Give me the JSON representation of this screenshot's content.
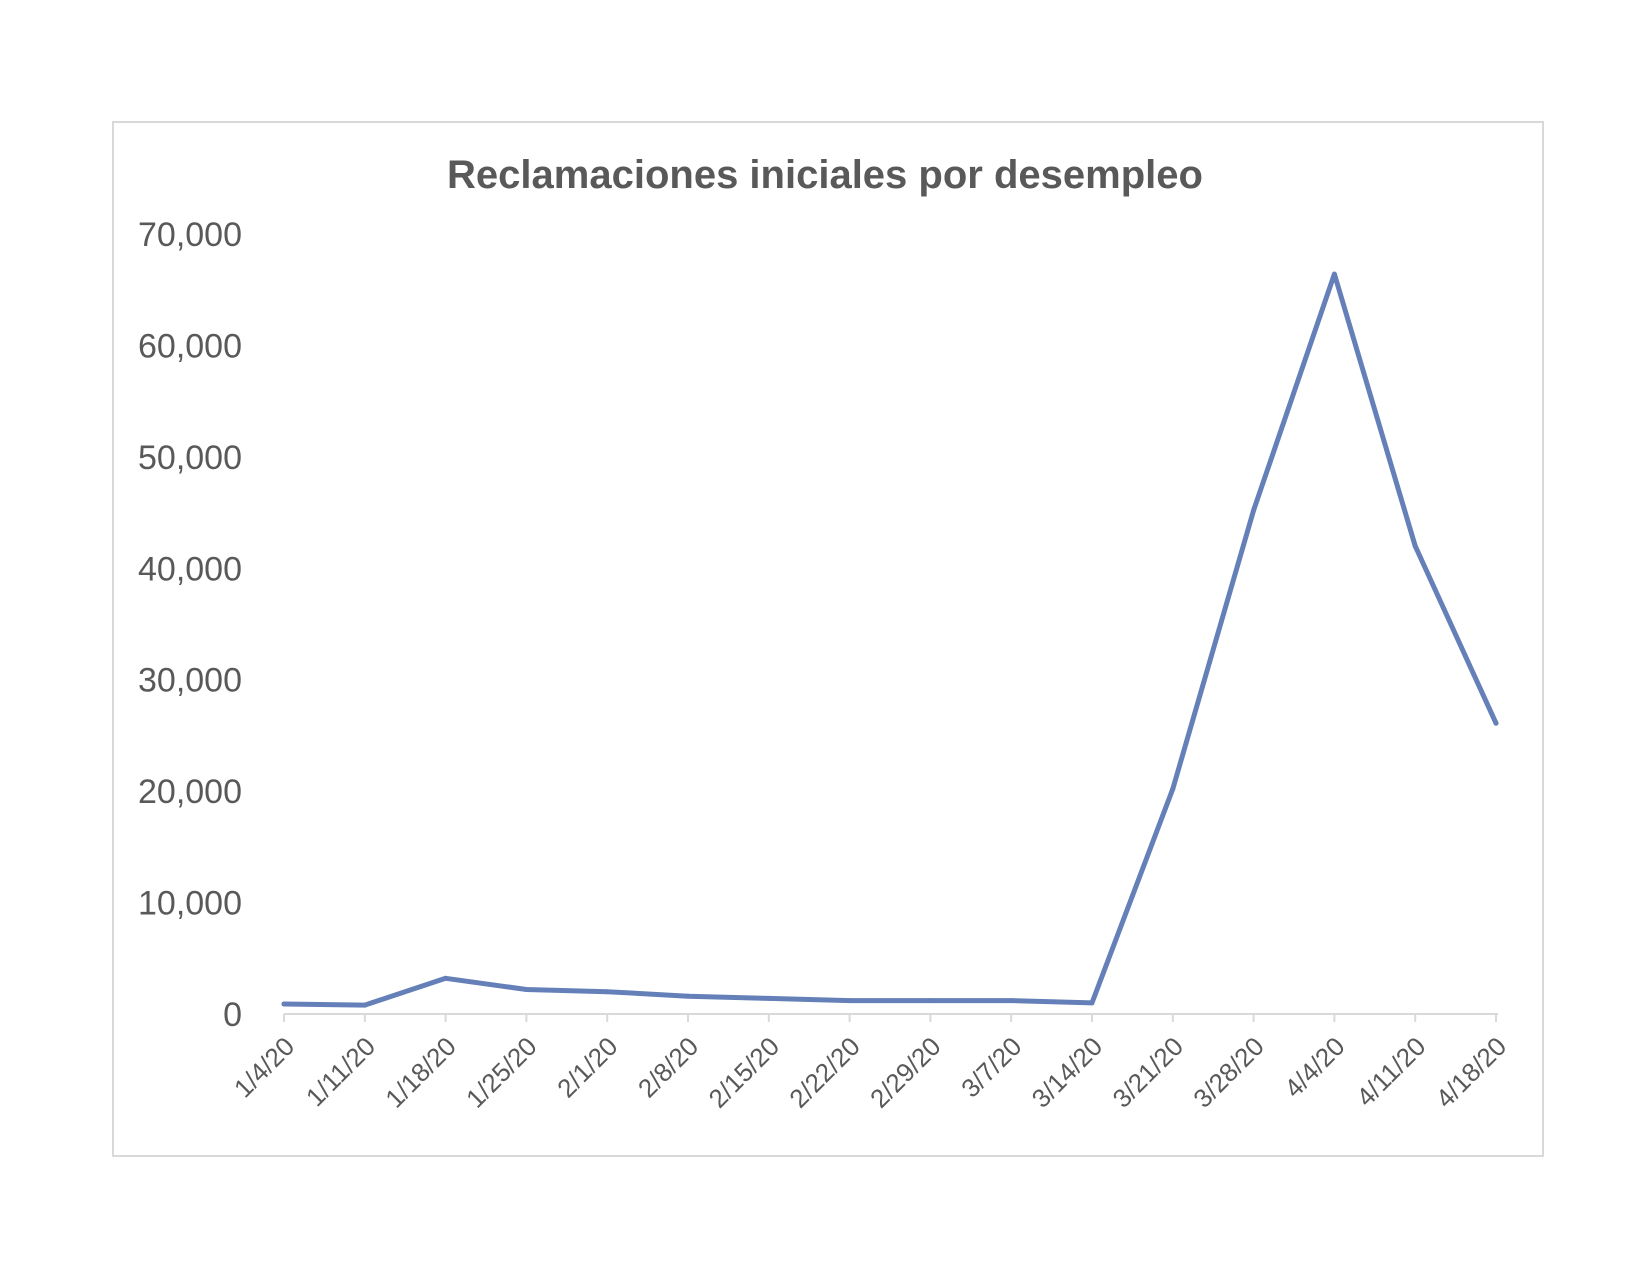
{
  "colors": {
    "series": "#6580b8"
  },
  "chart_data": {
    "type": "line",
    "title": "Reclamaciones iniciales por desempleo",
    "xlabel": "",
    "ylabel": "",
    "categories": [
      "1/4/20",
      "1/11/20",
      "1/18/20",
      "1/25/20",
      "2/1/20",
      "2/8/20",
      "2/15/20",
      "2/22/20",
      "2/29/20",
      "3/7/20",
      "3/14/20",
      "3/21/20",
      "3/28/20",
      "4/4/20",
      "4/11/20",
      "4/18/20"
    ],
    "series": [
      {
        "values": [
          900,
          800,
          3200,
          2200,
          2000,
          1600,
          1400,
          1200,
          1200,
          1200,
          1000,
          20200,
          45200,
          66400,
          42000,
          26100
        ]
      }
    ],
    "ylim": [
      0,
      70000
    ],
    "yticks": [
      0,
      10000,
      20000,
      30000,
      40000,
      50000,
      60000,
      70000
    ],
    "ytick_labels": [
      "0",
      "10,000",
      "20,000",
      "30,000",
      "40,000",
      "50,000",
      "60,000",
      "70,000"
    ],
    "grid": false,
    "legend": "none"
  }
}
